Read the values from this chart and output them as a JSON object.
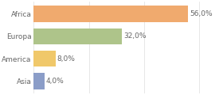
{
  "categories": [
    "Asia",
    "America",
    "Europa",
    "Africa"
  ],
  "values": [
    4.0,
    8.0,
    32.0,
    56.0
  ],
  "bar_colors": [
    "#8b9dc8",
    "#f0c86a",
    "#aec48a",
    "#f0aa6e"
  ],
  "labels": [
    "4,0%",
    "8,0%",
    "32,0%",
    "56,0%"
  ],
  "xlim": [
    0,
    68
  ],
  "background_color": "#ffffff",
  "bar_height": 0.72,
  "label_fontsize": 6.5,
  "tick_fontsize": 6.5,
  "grid_color": "#dddddd",
  "label_color": "#666666",
  "tick_color": "#666666"
}
